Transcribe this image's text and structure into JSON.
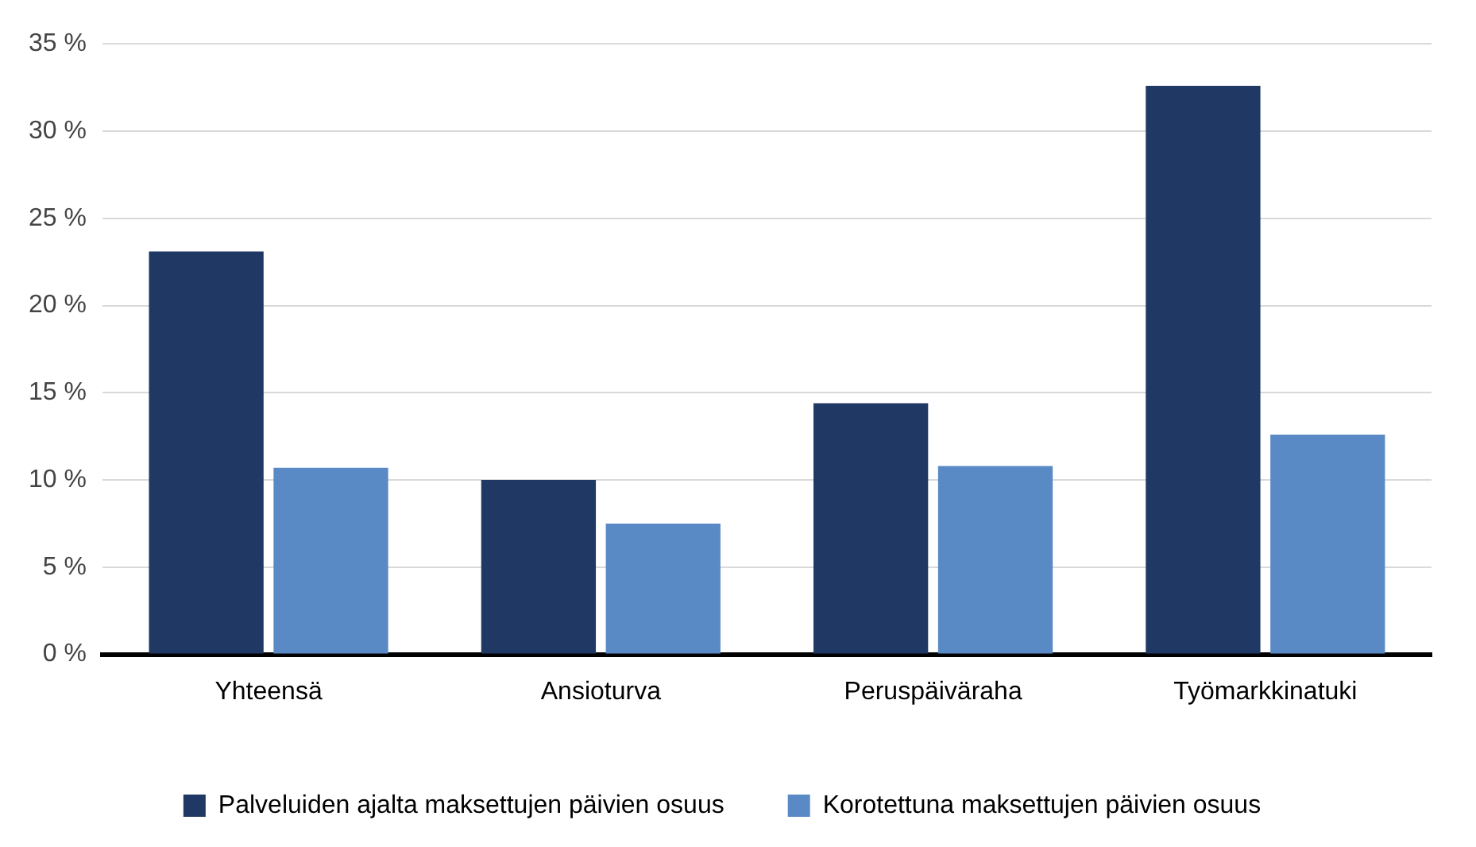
{
  "chart_data": {
    "type": "bar",
    "categories": [
      "Yhteensä",
      "Ansioturva",
      "Peruspäiväraha",
      "Työmarkkinatuki"
    ],
    "series": [
      {
        "name": "Palveluiden ajalta maksettujen päivien osuus",
        "color": "#203864",
        "values": [
          23.1,
          10.0,
          14.4,
          32.6
        ]
      },
      {
        "name": "Korotettuna maksettujen päivien osuus",
        "color": "#5a8ac6",
        "values": [
          10.7,
          7.5,
          10.8,
          12.6
        ]
      }
    ],
    "ylim": [
      0,
      35
    ],
    "yticks": [
      {
        "value": 0,
        "label": "0 %"
      },
      {
        "value": 5,
        "label": "5 %"
      },
      {
        "value": 10,
        "label": "10 %"
      },
      {
        "value": 15,
        "label": "15 %"
      },
      {
        "value": 20,
        "label": "20 %"
      },
      {
        "value": 25,
        "label": "25 %"
      },
      {
        "value": 30,
        "label": "30 %"
      },
      {
        "value": 35,
        "label": "35 %"
      }
    ],
    "grid": "y",
    "legend": "bottom"
  }
}
